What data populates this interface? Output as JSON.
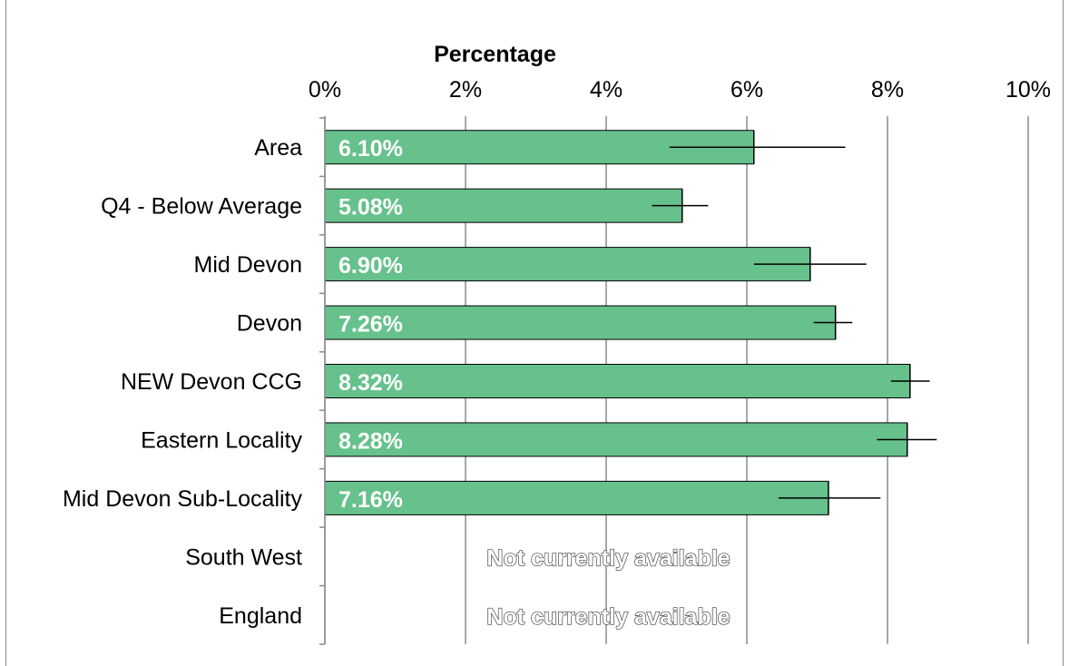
{
  "chart_data": {
    "type": "bar",
    "orientation": "horizontal",
    "title": "",
    "xlabel": "Percentage",
    "ylabel": "",
    "xlim": [
      0,
      10
    ],
    "x_ticks": [
      0,
      2,
      4,
      6,
      8,
      10
    ],
    "x_tick_labels": [
      "0%",
      "2%",
      "4%",
      "6%",
      "8%",
      "10%"
    ],
    "x_axis_position": "top",
    "grid": true,
    "legend": "none",
    "bar_color": "#66c18c",
    "bar_edge_color": "#000000",
    "categories": [
      "Area",
      "Q4 - Below Average",
      "Mid Devon",
      "Devon",
      "NEW Devon CCG",
      "Eastern Locality",
      "Mid Devon Sub-Locality",
      "South West",
      "England"
    ],
    "values": [
      6.1,
      5.08,
      6.9,
      7.26,
      8.32,
      8.28,
      7.16,
      null,
      null
    ],
    "data_labels": [
      "6.10%",
      "5.08%",
      "6.90%",
      "7.26%",
      "8.32%",
      "8.28%",
      "7.16%",
      "",
      ""
    ],
    "error_bars": [
      [
        4.9,
        7.4
      ],
      [
        4.65,
        5.45
      ],
      [
        6.1,
        7.7
      ],
      [
        6.95,
        7.5
      ],
      [
        8.05,
        8.6
      ],
      [
        7.85,
        8.7
      ],
      [
        6.45,
        7.9
      ],
      null,
      null
    ],
    "unavailable_label": "Not currently available"
  }
}
